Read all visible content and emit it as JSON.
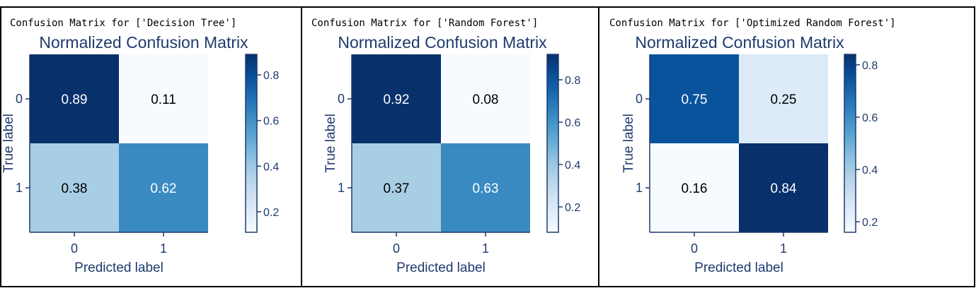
{
  "panels": [
    {
      "caption": "Confusion Matrix for ['Decision Tree']"
    },
    {
      "caption": "Confusion Matrix for ['Random Forest']"
    },
    {
      "caption": "Confusion Matrix for ['Optimized Random Forest']"
    }
  ],
  "chart_data": [
    {
      "type": "heatmap",
      "title": "Normalized Confusion Matrix",
      "xlabel": "Predicted label",
      "ylabel": "True label",
      "x_categories": [
        "0",
        "1"
      ],
      "y_categories": [
        "0",
        "1"
      ],
      "values": [
        [
          0.89,
          0.11
        ],
        [
          0.38,
          0.62
        ]
      ],
      "cell_labels": [
        [
          "0.89",
          "0.11"
        ],
        [
          "0.38",
          "0.62"
        ]
      ],
      "colormap": "Blues",
      "colorbar": {
        "range": [
          0.11,
          0.89
        ],
        "ticks": [
          0.2,
          0.4,
          0.6,
          0.8
        ],
        "tick_labels": [
          "0.2",
          "0.4",
          "0.6",
          "0.8"
        ]
      }
    },
    {
      "type": "heatmap",
      "title": "Normalized Confusion Matrix",
      "xlabel": "Predicted label",
      "ylabel": "True label",
      "x_categories": [
        "0",
        "1"
      ],
      "y_categories": [
        "0",
        "1"
      ],
      "values": [
        [
          0.92,
          0.08
        ],
        [
          0.37,
          0.63
        ]
      ],
      "cell_labels": [
        [
          "0.92",
          "0.08"
        ],
        [
          "0.37",
          "0.63"
        ]
      ],
      "colormap": "Blues",
      "colorbar": {
        "range": [
          0.08,
          0.92
        ],
        "ticks": [
          0.2,
          0.4,
          0.6,
          0.8
        ],
        "tick_labels": [
          "0.2",
          "0.4",
          "0.6",
          "0.8"
        ]
      }
    },
    {
      "type": "heatmap",
      "title": "Normalized Confusion Matrix",
      "xlabel": "Predicted label",
      "ylabel": "True label",
      "x_categories": [
        "0",
        "1"
      ],
      "y_categories": [
        "0",
        "1"
      ],
      "values": [
        [
          0.75,
          0.25
        ],
        [
          0.16,
          0.84
        ]
      ],
      "cell_labels": [
        [
          "0.75",
          "0.25"
        ],
        [
          "0.16",
          "0.84"
        ]
      ],
      "colormap": "Blues",
      "colorbar": {
        "range": [
          0.16,
          0.84
        ],
        "ticks": [
          0.2,
          0.4,
          0.6,
          0.8
        ],
        "tick_labels": [
          "0.2",
          "0.4",
          "0.6",
          "0.8"
        ]
      }
    }
  ]
}
